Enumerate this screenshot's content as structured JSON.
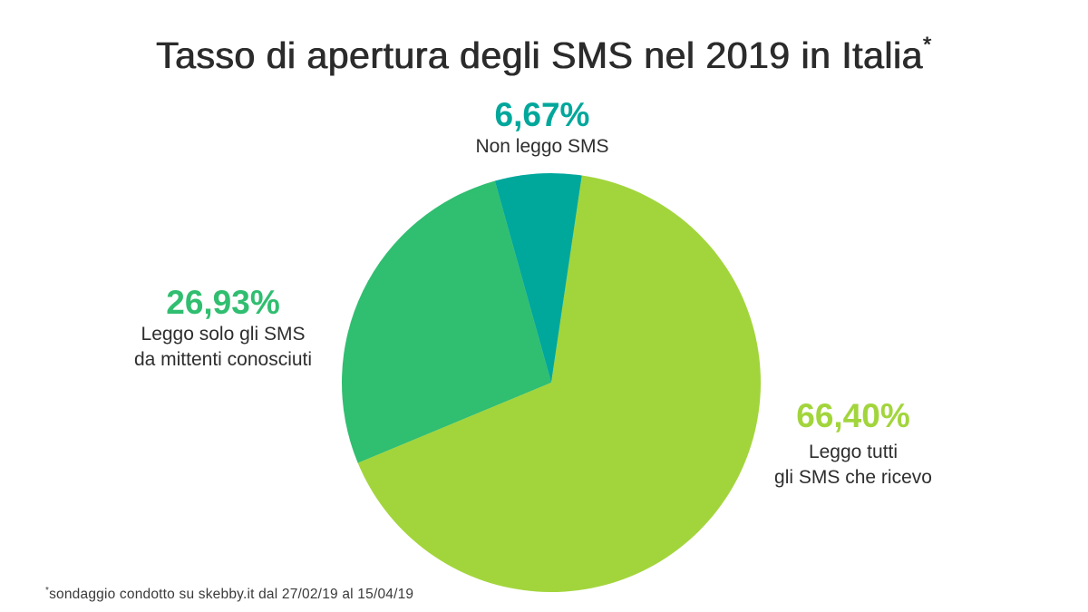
{
  "title": {
    "text": "Tasso di apertura degli SMS nel 2019 in Italia",
    "asterisk": "*"
  },
  "footnote": {
    "asterisk": "*",
    "text": "sondaggio condotto su skebby.it dal 27/02/19 al 15/04/19"
  },
  "colors": {
    "light_green": "#A2D53C",
    "green": "#30BE70",
    "teal": "#00A79B",
    "text_dark": "#2E2E2E"
  },
  "chart_data": {
    "type": "pie",
    "title": "Tasso di apertura degli SMS nel 2019 in Italia*",
    "start_angle_deg": 8.4,
    "legend_position": "around",
    "slices": [
      {
        "label": "Leggo tutti gli SMS che ricevo",
        "value_pct": 66.4,
        "display_value": "66,40%",
        "color": "#A2D53C"
      },
      {
        "label": "Leggo solo gli SMS da mittenti conosciuti",
        "value_pct": 26.93,
        "display_value": "26,93%",
        "color": "#30BE70"
      },
      {
        "label": "Non leggo SMS",
        "value_pct": 6.67,
        "display_value": "6,67%",
        "color": "#00A79B"
      }
    ]
  },
  "labels": {
    "top": {
      "value": "6,67%",
      "line1": "Non leggo SMS"
    },
    "left": {
      "value": "26,93%",
      "line1": "Leggo solo gli SMS",
      "line2": "da mittenti conosciuti"
    },
    "right": {
      "value": "66,40%",
      "line1": "Leggo tutti",
      "line2": "gli SMS che ricevo"
    }
  }
}
